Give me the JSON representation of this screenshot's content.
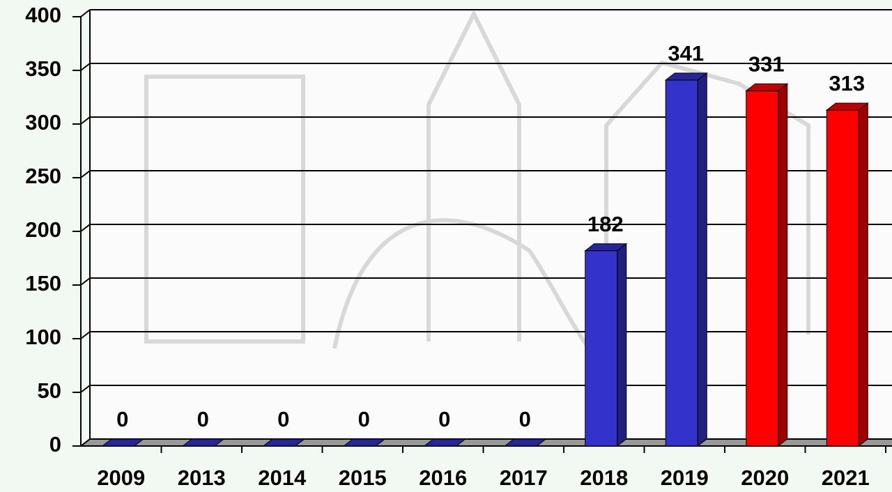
{
  "chart_data": {
    "type": "bar3d",
    "categories": [
      "2009",
      "2013",
      "2014",
      "2015",
      "2016",
      "2017",
      "2018",
      "2019",
      "2020",
      "2021"
    ],
    "values": [
      0,
      0,
      0,
      0,
      0,
      0,
      182,
      341,
      331,
      313
    ],
    "colors": [
      "#3333cc",
      "#3333cc",
      "#3333cc",
      "#3333cc",
      "#3333cc",
      "#3333cc",
      "#3333cc",
      "#3333cc",
      "#ff0000",
      "#ff0000"
    ],
    "ylim": [
      0,
      400
    ],
    "yticks": [
      0,
      50,
      100,
      150,
      200,
      250,
      300,
      350,
      400
    ],
    "grid": true
  }
}
